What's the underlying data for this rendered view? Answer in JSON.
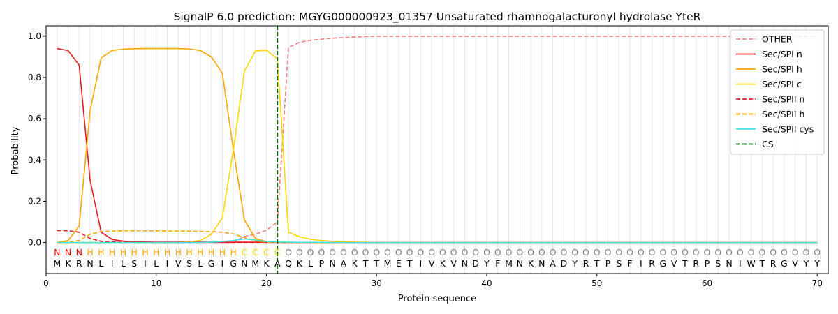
{
  "chart_data": {
    "type": "line",
    "title": "SignalP 6.0 prediction: MGYG000000923_01357 Unsaturated rhamnogalacturonyl hydrolase YteR",
    "xlabel": "Protein sequence",
    "ylabel": "Probability",
    "xlim": [
      0,
      71
    ],
    "ylim": [
      -0.15,
      1.05
    ],
    "xticks": [
      "0",
      "10",
      "20",
      "30",
      "40",
      "50",
      "60",
      "70"
    ],
    "yticks": [
      "0.0",
      "0.2",
      "0.4",
      "0.6",
      "0.8",
      "1.0"
    ],
    "grid": "vertical lines at each residue",
    "legend_position": "top-right",
    "sequence": [
      "M",
      "K",
      "R",
      "N",
      "L",
      "I",
      "L",
      "S",
      "I",
      "L",
      "I",
      "V",
      "S",
      "L",
      "G",
      "I",
      "G",
      "N",
      "M",
      "K",
      "A",
      "Q",
      "K",
      "L",
      "P",
      "N",
      "A",
      "K",
      "T",
      "T",
      "M",
      "E",
      "T",
      "I",
      "V",
      "K",
      "V",
      "N",
      "D",
      "Y",
      "F",
      "M",
      "N",
      "K",
      "N",
      "A",
      "D",
      "Y",
      "R",
      "T",
      "P",
      "S",
      "F",
      "I",
      "R",
      "G",
      "V",
      "T",
      "R",
      "P",
      "S",
      "N",
      "I",
      "W",
      "T",
      "R",
      "G",
      "V",
      "Y",
      "Y"
    ],
    "region_labels": [
      "N",
      "N",
      "N",
      "H",
      "H",
      "H",
      "H",
      "H",
      "H",
      "H",
      "H",
      "H",
      "H",
      "H",
      "H",
      "H",
      "H",
      "C",
      "C",
      "C",
      "C",
      "O",
      "O",
      "O",
      "O",
      "O",
      "O",
      "O",
      "O",
      "O",
      "O",
      "O",
      "O",
      "O",
      "O",
      "O",
      "O",
      "O",
      "O",
      "O",
      "O",
      "O",
      "O",
      "O",
      "O",
      "O",
      "O",
      "O",
      "O",
      "O",
      "O",
      "O",
      "O",
      "O",
      "O",
      "O",
      "O",
      "O",
      "O",
      "O",
      "O",
      "O",
      "O",
      "O",
      "O",
      "O",
      "O",
      "O",
      "O",
      "O"
    ],
    "region_colors": {
      "N": "#ff0000",
      "H": "#ffa500",
      "C": "#ffd700",
      "O": "#808080"
    },
    "cleavage_site": 21,
    "series": [
      {
        "name": "OTHER",
        "color": "#f08080",
        "dash": "dashed",
        "values": [
          0.0,
          0.0,
          0.0,
          0.0,
          0.0,
          0.0,
          0.0,
          0.0,
          0.0,
          0.0,
          0.0,
          0.0,
          0.0,
          0.0,
          0.0,
          0.0,
          0.0,
          0.03,
          0.04,
          0.06,
          0.1,
          0.945,
          0.97,
          0.98,
          0.985,
          0.99,
          0.993,
          0.996,
          0.998,
          0.999,
          0.999,
          0.999,
          0.999,
          0.999,
          0.999,
          0.999,
          0.999,
          0.999,
          0.999,
          0.999,
          0.999,
          0.999,
          0.999,
          0.999,
          0.999,
          0.999,
          0.999,
          0.999,
          0.999,
          0.999,
          0.999,
          0.999,
          0.999,
          0.999,
          0.999,
          0.999,
          0.999,
          0.999,
          0.999,
          0.999,
          0.999,
          0.999,
          0.999,
          0.999,
          0.999,
          0.999,
          0.999,
          0.999,
          0.999,
          0.999
        ]
      },
      {
        "name": "Sec/SPI n",
        "color": "#e41a1c",
        "dash": "solid",
        "values": [
          0.94,
          0.93,
          0.86,
          0.3,
          0.05,
          0.015,
          0.007,
          0.004,
          0.003,
          0.002,
          0.002,
          0.002,
          0.002,
          0.002,
          0.002,
          0.002,
          0.002,
          0.002,
          0.002,
          0.001,
          0.001,
          0.0,
          0.0,
          0.0,
          0.0,
          0.0,
          0.0,
          0.0,
          0.0,
          0.0,
          0.0,
          0.0,
          0.0,
          0.0,
          0.0,
          0.0,
          0.0,
          0.0,
          0.0,
          0.0,
          0.0,
          0.0,
          0.0,
          0.0,
          0.0,
          0.0,
          0.0,
          0.0,
          0.0,
          0.0,
          0.0,
          0.0,
          0.0,
          0.0,
          0.0,
          0.0,
          0.0,
          0.0,
          0.0,
          0.0,
          0.0,
          0.0,
          0.0,
          0.0,
          0.0,
          0.0,
          0.0,
          0.0,
          0.0,
          0.0
        ]
      },
      {
        "name": "Sec/SPI h",
        "color": "#ffa500",
        "dash": "solid",
        "values": [
          0.0,
          0.01,
          0.08,
          0.64,
          0.895,
          0.93,
          0.937,
          0.939,
          0.94,
          0.94,
          0.94,
          0.94,
          0.938,
          0.93,
          0.9,
          0.82,
          0.45,
          0.11,
          0.02,
          0.005,
          0.002,
          0.0,
          0.0,
          0.0,
          0.0,
          0.0,
          0.0,
          0.0,
          0.0,
          0.0,
          0.0,
          0.0,
          0.0,
          0.0,
          0.0,
          0.0,
          0.0,
          0.0,
          0.0,
          0.0,
          0.0,
          0.0,
          0.0,
          0.0,
          0.0,
          0.0,
          0.0,
          0.0,
          0.0,
          0.0,
          0.0,
          0.0,
          0.0,
          0.0,
          0.0,
          0.0,
          0.0,
          0.0,
          0.0,
          0.0,
          0.0,
          0.0,
          0.0,
          0.0,
          0.0,
          0.0,
          0.0,
          0.0,
          0.0,
          0.0
        ]
      },
      {
        "name": "Sec/SPI c",
        "color": "#ffd700",
        "dash": "solid",
        "values": [
          0.0,
          0.0,
          0.0,
          0.0,
          0.0,
          0.0,
          0.0,
          0.0,
          0.0,
          0.0,
          0.0,
          0.0,
          0.003,
          0.01,
          0.04,
          0.12,
          0.45,
          0.83,
          0.928,
          0.932,
          0.89,
          0.05,
          0.028,
          0.016,
          0.01,
          0.006,
          0.004,
          0.002,
          0.001,
          0.0,
          0.0,
          0.0,
          0.0,
          0.0,
          0.0,
          0.0,
          0.0,
          0.0,
          0.0,
          0.0,
          0.0,
          0.0,
          0.0,
          0.0,
          0.0,
          0.0,
          0.0,
          0.0,
          0.0,
          0.0,
          0.0,
          0.0,
          0.0,
          0.0,
          0.0,
          0.0,
          0.0,
          0.0,
          0.0,
          0.0,
          0.0,
          0.0,
          0.0,
          0.0,
          0.0,
          0.0,
          0.0,
          0.0,
          0.0,
          0.0
        ]
      },
      {
        "name": "Sec/SPII n",
        "color": "#e41a1c",
        "dash": "dashed",
        "values": [
          0.058,
          0.057,
          0.05,
          0.02,
          0.006,
          0.003,
          0.002,
          0.001,
          0.001,
          0.001,
          0.001,
          0.001,
          0.001,
          0.001,
          0.001,
          0.001,
          0.001,
          0.001,
          0.001,
          0.001,
          0.001,
          0.0,
          0.0,
          0.0,
          0.0,
          0.0,
          0.0,
          0.0,
          0.0,
          0.0,
          0.0,
          0.0,
          0.0,
          0.0,
          0.0,
          0.0,
          0.0,
          0.0,
          0.0,
          0.0,
          0.0,
          0.0,
          0.0,
          0.0,
          0.0,
          0.0,
          0.0,
          0.0,
          0.0,
          0.0,
          0.0,
          0.0,
          0.0,
          0.0,
          0.0,
          0.0,
          0.0,
          0.0,
          0.0,
          0.0,
          0.0,
          0.0,
          0.0,
          0.0,
          0.0,
          0.0,
          0.0,
          0.0,
          0.0,
          0.0
        ]
      },
      {
        "name": "Sec/SPII h",
        "color": "#ffa500",
        "dash": "dashed",
        "values": [
          0.0,
          0.002,
          0.01,
          0.04,
          0.053,
          0.056,
          0.057,
          0.057,
          0.057,
          0.057,
          0.056,
          0.056,
          0.055,
          0.054,
          0.053,
          0.05,
          0.042,
          0.025,
          0.008,
          0.002,
          0.001,
          0.0,
          0.0,
          0.0,
          0.0,
          0.0,
          0.0,
          0.0,
          0.0,
          0.0,
          0.0,
          0.0,
          0.0,
          0.0,
          0.0,
          0.0,
          0.0,
          0.0,
          0.0,
          0.0,
          0.0,
          0.0,
          0.0,
          0.0,
          0.0,
          0.0,
          0.0,
          0.0,
          0.0,
          0.0,
          0.0,
          0.0,
          0.0,
          0.0,
          0.0,
          0.0,
          0.0,
          0.0,
          0.0,
          0.0,
          0.0,
          0.0,
          0.0,
          0.0,
          0.0,
          0.0,
          0.0,
          0.0,
          0.0,
          0.0
        ]
      },
      {
        "name": "Sec/SPII cys",
        "color": "#40e0e0",
        "dash": "solid",
        "values": [
          0.0,
          0.0,
          0.0,
          0.0,
          0.0,
          0.0,
          0.0,
          0.0,
          0.0,
          0.0,
          0.0,
          0.0,
          0.0,
          0.0,
          0.002,
          0.005,
          0.01,
          0.018,
          0.012,
          0.005,
          0.003,
          0.002,
          0.001,
          0.001,
          0.001,
          0.0,
          0.0,
          0.0,
          0.0,
          0.0,
          0.0,
          0.0,
          0.0,
          0.0,
          0.0,
          0.0,
          0.0,
          0.0,
          0.0,
          0.0,
          0.0,
          0.0,
          0.0,
          0.0,
          0.0,
          0.0,
          0.0,
          0.0,
          0.0,
          0.0,
          0.0,
          0.0,
          0.0,
          0.0,
          0.0,
          0.0,
          0.0,
          0.0,
          0.0,
          0.0,
          0.0,
          0.0,
          0.0,
          0.0,
          0.0,
          0.0,
          0.0,
          0.0,
          0.0,
          0.0
        ]
      }
    ],
    "cs_legend": {
      "name": "CS",
      "color": "#006400",
      "dash": "dashed"
    }
  }
}
